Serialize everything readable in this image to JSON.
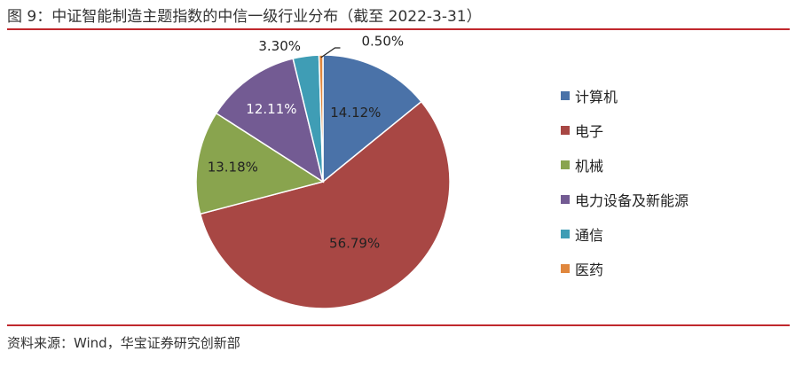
{
  "header": {
    "title": "图 9：中证智能制造主题指数的中信一级行业分布（截至 2022-3-31）"
  },
  "footer": {
    "source": "资料来源：Wind，华宝证券研究创新部"
  },
  "chart_data": {
    "type": "pie",
    "unit": "%",
    "slices": [
      {
        "label": "计算机",
        "value": 14.12,
        "display": "14.12%",
        "color": "#4a72a8",
        "label_color": "#222222"
      },
      {
        "label": "电子",
        "value": 56.79,
        "display": "56.79%",
        "color": "#a84744",
        "label_color": "#222222"
      },
      {
        "label": "机械",
        "value": 13.18,
        "display": "13.18%",
        "color": "#89a44e",
        "label_color": "#222222"
      },
      {
        "label": "电力设备及新能源",
        "value": 12.11,
        "display": "12.11%",
        "color": "#735b93",
        "label_color": "#ffffff"
      },
      {
        "label": "通信",
        "value": 3.3,
        "display": "3.30%",
        "color": "#3f9db5",
        "label_color": "#222222"
      },
      {
        "label": "医药",
        "value": 0.5,
        "display": "0.50%",
        "color": "#e0873d",
        "label_color": "#222222"
      }
    ],
    "start_angle": "12 o'clock",
    "direction": "clockwise",
    "legend_position": "right"
  }
}
